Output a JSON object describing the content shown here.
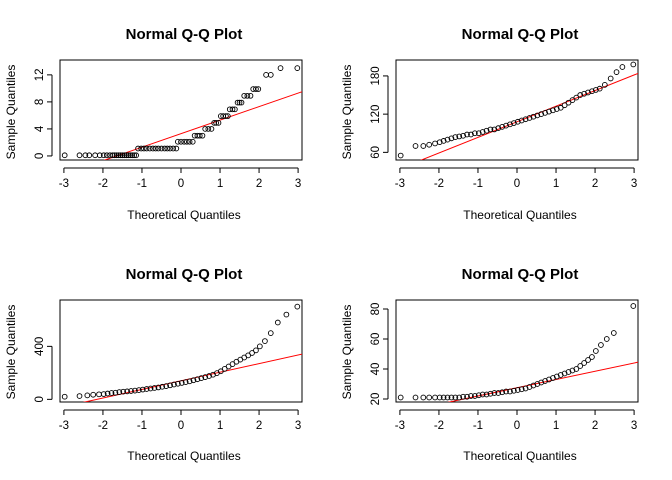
{
  "chart_data": [
    {
      "type": "scatter",
      "title": "Normal Q-Q Plot",
      "xlabel": "Theoretical Quantiles",
      "ylabel": "Sample Quantiles",
      "xlim": [
        -3.1,
        3.1
      ],
      "ylim": [
        -0.6,
        14.2
      ],
      "xticks": [
        -3,
        -2,
        -1,
        0,
        1,
        2,
        3
      ],
      "yticks": [
        0,
        4,
        8,
        12
      ],
      "reference_line": {
        "intercept": 3.3,
        "slope": 2.0,
        "color": "#FF0000"
      },
      "points": [
        [
          -2.98,
          0.1
        ],
        [
          -2.6,
          0.1
        ],
        [
          -2.45,
          0.1
        ],
        [
          -2.35,
          0.1
        ],
        [
          -2.2,
          0.1
        ],
        [
          -2.08,
          0.1
        ],
        [
          -1.98,
          0.1
        ],
        [
          -1.9,
          0.1
        ],
        [
          -1.82,
          0.1
        ],
        [
          -1.75,
          0.1
        ],
        [
          -1.7,
          0.1
        ],
        [
          -1.65,
          0.1
        ],
        [
          -1.6,
          0.1
        ],
        [
          -1.55,
          0.1
        ],
        [
          -1.5,
          0.1
        ],
        [
          -1.45,
          0.1
        ],
        [
          -1.4,
          0.1
        ],
        [
          -1.35,
          0.1
        ],
        [
          -1.3,
          0.1
        ],
        [
          -1.25,
          0.1
        ],
        [
          -1.2,
          0.1
        ],
        [
          -1.15,
          0.1
        ],
        [
          -1.1,
          1.1
        ],
        [
          -1.02,
          1.1
        ],
        [
          -0.95,
          1.1
        ],
        [
          -0.88,
          1.1
        ],
        [
          -0.8,
          1.1
        ],
        [
          -0.72,
          1.1
        ],
        [
          -0.65,
          1.1
        ],
        [
          -0.58,
          1.1
        ],
        [
          -0.5,
          1.1
        ],
        [
          -0.42,
          1.1
        ],
        [
          -0.35,
          1.1
        ],
        [
          -0.28,
          1.1
        ],
        [
          -0.2,
          1.1
        ],
        [
          -0.12,
          1.1
        ],
        [
          -0.08,
          2.1
        ],
        [
          0.0,
          2.1
        ],
        [
          0.08,
          2.1
        ],
        [
          0.15,
          2.1
        ],
        [
          0.22,
          2.1
        ],
        [
          0.3,
          2.1
        ],
        [
          0.35,
          3.0
        ],
        [
          0.42,
          3.0
        ],
        [
          0.48,
          3.0
        ],
        [
          0.55,
          3.0
        ],
        [
          0.62,
          4.0
        ],
        [
          0.7,
          4.0
        ],
        [
          0.78,
          4.0
        ],
        [
          0.85,
          4.9
        ],
        [
          0.9,
          4.9
        ],
        [
          0.96,
          4.9
        ],
        [
          1.02,
          5.9
        ],
        [
          1.08,
          5.9
        ],
        [
          1.15,
          5.9
        ],
        [
          1.2,
          5.9
        ],
        [
          1.25,
          6.9
        ],
        [
          1.32,
          6.9
        ],
        [
          1.38,
          6.9
        ],
        [
          1.45,
          7.9
        ],
        [
          1.5,
          7.9
        ],
        [
          1.55,
          7.9
        ],
        [
          1.62,
          8.9
        ],
        [
          1.7,
          8.9
        ],
        [
          1.78,
          8.9
        ],
        [
          1.85,
          9.9
        ],
        [
          1.92,
          9.9
        ],
        [
          1.98,
          9.9
        ],
        [
          2.18,
          12.0
        ],
        [
          2.3,
          12.0
        ],
        [
          2.55,
          13.0
        ],
        [
          2.98,
          13.0
        ]
      ]
    },
    {
      "type": "scatter",
      "title": "Normal Q-Q Plot",
      "xlabel": "Theoretical Quantiles",
      "ylabel": "Sample Quantiles",
      "xlim": [
        -3.1,
        3.1
      ],
      "ylim": [
        48,
        205
      ],
      "xticks": [
        -3,
        -2,
        -1,
        0,
        1,
        2,
        3
      ],
      "yticks": [
        60,
        120,
        180
      ],
      "reference_line": {
        "intercept": 108,
        "slope": 24.5,
        "color": "#FF0000"
      },
      "points": [
        [
          -2.98,
          55
        ],
        [
          -2.6,
          70
        ],
        [
          -2.4,
          70
        ],
        [
          -2.25,
          72
        ],
        [
          -2.1,
          74
        ],
        [
          -1.98,
          76
        ],
        [
          -1.88,
          78
        ],
        [
          -1.78,
          80
        ],
        [
          -1.68,
          82
        ],
        [
          -1.58,
          84
        ],
        [
          -1.48,
          85
        ],
        [
          -1.38,
          86
        ],
        [
          -1.28,
          88
        ],
        [
          -1.18,
          88
        ],
        [
          -1.08,
          90
        ],
        [
          -0.98,
          90
        ],
        [
          -0.88,
          92
        ],
        [
          -0.78,
          94
        ],
        [
          -0.68,
          96
        ],
        [
          -0.58,
          96
        ],
        [
          -0.48,
          98
        ],
        [
          -0.38,
          100
        ],
        [
          -0.28,
          102
        ],
        [
          -0.18,
          104
        ],
        [
          -0.08,
          106
        ],
        [
          0.02,
          108
        ],
        [
          0.12,
          110
        ],
        [
          0.22,
          112
        ],
        [
          0.32,
          114
        ],
        [
          0.42,
          116
        ],
        [
          0.52,
          118
        ],
        [
          0.62,
          120
        ],
        [
          0.72,
          122
        ],
        [
          0.82,
          124
        ],
        [
          0.92,
          126
        ],
        [
          1.02,
          128
        ],
        [
          1.12,
          130
        ],
        [
          1.22,
          134
        ],
        [
          1.32,
          138
        ],
        [
          1.42,
          142
        ],
        [
          1.52,
          146
        ],
        [
          1.62,
          150
        ],
        [
          1.72,
          152
        ],
        [
          1.82,
          154
        ],
        [
          1.92,
          156
        ],
        [
          2.02,
          158
        ],
        [
          2.12,
          160
        ],
        [
          2.25,
          166
        ],
        [
          2.4,
          176
        ],
        [
          2.55,
          186
        ],
        [
          2.7,
          194
        ],
        [
          2.98,
          198
        ]
      ]
    },
    {
      "type": "scatter",
      "title": "Normal Q-Q Plot",
      "xlabel": "Theoretical Quantiles",
      "ylabel": "Sample Quantiles",
      "xlim": [
        -3.1,
        3.1
      ],
      "ylim": [
        -20,
        750
      ],
      "xticks": [
        -3,
        -2,
        -1,
        0,
        1,
        2,
        3
      ],
      "yticks": [
        0,
        400
      ],
      "reference_line": {
        "intercept": 140,
        "slope": 65,
        "color": "#FF0000"
      },
      "points": [
        [
          -2.98,
          20
        ],
        [
          -2.6,
          25
        ],
        [
          -2.4,
          30
        ],
        [
          -2.25,
          35
        ],
        [
          -2.1,
          38
        ],
        [
          -1.98,
          40
        ],
        [
          -1.88,
          44
        ],
        [
          -1.78,
          48
        ],
        [
          -1.68,
          50
        ],
        [
          -1.58,
          55
        ],
        [
          -1.48,
          58
        ],
        [
          -1.38,
          60
        ],
        [
          -1.28,
          63
        ],
        [
          -1.18,
          66
        ],
        [
          -1.08,
          70
        ],
        [
          -0.98,
          74
        ],
        [
          -0.88,
          78
        ],
        [
          -0.78,
          82
        ],
        [
          -0.68,
          86
        ],
        [
          -0.58,
          90
        ],
        [
          -0.48,
          95
        ],
        [
          -0.38,
          100
        ],
        [
          -0.28,
          106
        ],
        [
          -0.18,
          112
        ],
        [
          -0.08,
          118
        ],
        [
          0.02,
          124
        ],
        [
          0.12,
          130
        ],
        [
          0.22,
          136
        ],
        [
          0.32,
          144
        ],
        [
          0.42,
          152
        ],
        [
          0.52,
          160
        ],
        [
          0.62,
          168
        ],
        [
          0.72,
          176
        ],
        [
          0.82,
          186
        ],
        [
          0.92,
          198
        ],
        [
          1.02,
          212
        ],
        [
          1.12,
          230
        ],
        [
          1.22,
          248
        ],
        [
          1.32,
          266
        ],
        [
          1.42,
          284
        ],
        [
          1.52,
          300
        ],
        [
          1.62,
          316
        ],
        [
          1.72,
          332
        ],
        [
          1.82,
          350
        ],
        [
          1.92,
          370
        ],
        [
          2.02,
          400
        ],
        [
          2.15,
          440
        ],
        [
          2.3,
          500
        ],
        [
          2.48,
          580
        ],
        [
          2.7,
          640
        ],
        [
          2.98,
          700
        ]
      ]
    },
    {
      "type": "scatter",
      "title": "Normal Q-Q Plot",
      "xlabel": "Theoretical Quantiles",
      "ylabel": "Sample Quantiles",
      "xlim": [
        -3.1,
        3.1
      ],
      "ylim": [
        18,
        86
      ],
      "xticks": [
        -3,
        -2,
        -1,
        0,
        1,
        2,
        3
      ],
      "yticks": [
        20,
        40,
        60,
        80
      ],
      "reference_line": {
        "intercept": 27.5,
        "slope": 5.5,
        "color": "#FF0000"
      },
      "points": [
        [
          -2.98,
          21
        ],
        [
          -2.6,
          21
        ],
        [
          -2.4,
          21
        ],
        [
          -2.25,
          21
        ],
        [
          -2.1,
          21
        ],
        [
          -1.98,
          21
        ],
        [
          -1.88,
          21
        ],
        [
          -1.78,
          21
        ],
        [
          -1.68,
          21
        ],
        [
          -1.58,
          21
        ],
        [
          -1.48,
          21
        ],
        [
          -1.38,
          21.5
        ],
        [
          -1.28,
          21.5
        ],
        [
          -1.18,
          22
        ],
        [
          -1.08,
          22
        ],
        [
          -0.98,
          22.5
        ],
        [
          -0.88,
          23
        ],
        [
          -0.78,
          23
        ],
        [
          -0.68,
          23.5
        ],
        [
          -0.58,
          24
        ],
        [
          -0.48,
          24
        ],
        [
          -0.38,
          24.5
        ],
        [
          -0.28,
          25
        ],
        [
          -0.18,
          25
        ],
        [
          -0.08,
          25.5
        ],
        [
          0.02,
          26
        ],
        [
          0.12,
          26.5
        ],
        [
          0.22,
          27
        ],
        [
          0.32,
          28
        ],
        [
          0.42,
          29
        ],
        [
          0.52,
          30
        ],
        [
          0.62,
          31
        ],
        [
          0.72,
          32
        ],
        [
          0.82,
          33
        ],
        [
          0.92,
          34
        ],
        [
          1.02,
          35
        ],
        [
          1.12,
          36
        ],
        [
          1.22,
          37
        ],
        [
          1.32,
          38
        ],
        [
          1.42,
          39
        ],
        [
          1.52,
          40
        ],
        [
          1.62,
          42
        ],
        [
          1.72,
          44
        ],
        [
          1.82,
          46
        ],
        [
          1.92,
          48
        ],
        [
          2.02,
          52
        ],
        [
          2.15,
          56
        ],
        [
          2.3,
          60
        ],
        [
          2.48,
          64
        ],
        [
          2.98,
          82
        ]
      ]
    }
  ]
}
